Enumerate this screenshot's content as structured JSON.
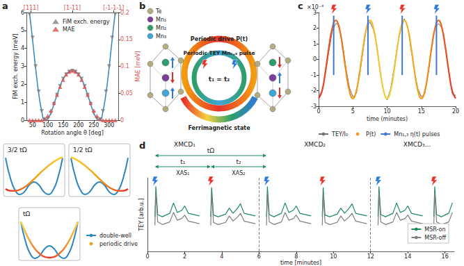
{
  "panel_labels": [
    "a",
    "b",
    "c",
    "d"
  ],
  "diagram": {
    "atoms": [
      {
        "label": "Te",
        "color": "#b3ac82"
      },
      {
        "label": "Mn₁",
        "color": "#7b3f98"
      },
      {
        "label": "Mn₂",
        "color": "#2e9e6b"
      },
      {
        "label": "Mn₃",
        "color": "#3fa7d6"
      }
    ],
    "rings": [
      "Periodic drive P(t)",
      "Periodic TEY Mn₁,₃ pulse",
      "Ferrimagnetic state"
    ],
    "timing": "t₁ = t₂"
  },
  "chart_data": [
    {
      "panel": "a",
      "type": "line",
      "grid": false,
      "legend": "top",
      "xlabel": "Rotation angle θ [deg]",
      "ylabel": "FiM exch. energy [meV]",
      "y2label": "MAE [meV]",
      "x": [
        40,
        50,
        60,
        70,
        80,
        90,
        100,
        110,
        120,
        130,
        140,
        150,
        160,
        170,
        180,
        190,
        200,
        210,
        220,
        230,
        240,
        250,
        260,
        270,
        280,
        290,
        300,
        310,
        320
      ],
      "xlim": [
        30,
        330
      ],
      "xticks": [
        50,
        100,
        150,
        200,
        250,
        300
      ],
      "top_ticks": [
        {
          "value": 45,
          "label": "[111]"
        },
        {
          "value": 180,
          "label": "[1-11]"
        },
        {
          "value": 315,
          "label": "[-1-1-1]"
        }
      ],
      "ylim": [
        0,
        6
      ],
      "yticks": [
        0,
        1,
        2,
        3,
        4,
        5,
        6
      ],
      "y2lim": [
        0,
        0.2
      ],
      "y2ticks": [
        0,
        0.05,
        0.1,
        0.15,
        0.2
      ],
      "series": [
        {
          "name": "FiM exch. energy",
          "color": "#7f7f7f",
          "marker": "triangle-down",
          "line_style": "none",
          "values": [
            5.9,
            4.6,
            3.0,
            1.6,
            0.5,
            0.05,
            0.1,
            0.4,
            0.9,
            1.4,
            1.9,
            2.3,
            2.55,
            2.7,
            2.75,
            2.7,
            2.55,
            2.3,
            1.9,
            1.4,
            0.9,
            0.4,
            0.1,
            0.05,
            0.5,
            1.6,
            3.0,
            4.6,
            5.9
          ]
        },
        {
          "name": "MAE",
          "color": "#d9534f",
          "marker": "triangle",
          "line_style": "none",
          "axis": "y2",
          "values": [
            0,
            0,
            0,
            0,
            0,
            0.002,
            0.008,
            0.018,
            0.032,
            0.047,
            0.062,
            0.075,
            0.085,
            0.09,
            0.092,
            0.09,
            0.085,
            0.075,
            0.062,
            0.047,
            0.032,
            0.018,
            0.008,
            0.002,
            0,
            0,
            0,
            0,
            0
          ]
        },
        {
          "color": "#2e86c1",
          "marker": "none",
          "line_style": "solid",
          "values": [
            6.0,
            4.5,
            2.9,
            1.5,
            0.5,
            0.0,
            0.1,
            0.4,
            0.9,
            1.4,
            1.9,
            2.3,
            2.55,
            2.7,
            2.75,
            2.7,
            2.55,
            2.3,
            1.9,
            1.4,
            0.9,
            0.4,
            0.1,
            0.0,
            0.5,
            1.5,
            2.9,
            4.5,
            6.0
          ]
        }
      ]
    },
    {
      "type": "line",
      "title": "3/2 tΩ",
      "tick_labels": false,
      "grid": false,
      "x": [
        -1.2,
        -1.0,
        -0.8,
        -0.6,
        -0.4,
        -0.2,
        0,
        0.2,
        0.4,
        0.6,
        0.8,
        1.0,
        1.2
      ],
      "xlim": [
        -1.2,
        1.2
      ],
      "ylim": [
        0,
        1.1
      ],
      "series": [
        {
          "name": "double-well",
          "color": "#2e86c1",
          "line_style": "solid",
          "values": [
            1.0,
            0.45,
            0.12,
            0.0,
            0.08,
            0.26,
            0.34,
            0.26,
            0.08,
            0.0,
            0.12,
            0.45,
            1.0
          ]
        },
        {
          "name": "periodic drive",
          "color": "#f39c12",
          "line_style": "gradient",
          "values": [
            0.15,
            0.1,
            0.1,
            0.13,
            0.2,
            0.3,
            0.42,
            0.55,
            0.67,
            0.78,
            0.88,
            0.96,
            1.02
          ]
        }
      ]
    },
    {
      "type": "line",
      "title": "1/2 tΩ",
      "tick_labels": false,
      "grid": false,
      "x": [
        -1.2,
        -1.0,
        -0.8,
        -0.6,
        -0.4,
        -0.2,
        0,
        0.2,
        0.4,
        0.6,
        0.8,
        1.0,
        1.2
      ],
      "xlim": [
        -1.2,
        1.2
      ],
      "ylim": [
        0,
        1.1
      ],
      "series": [
        {
          "name": "double-well",
          "color": "#2e86c1",
          "line_style": "solid",
          "values": [
            1.0,
            0.45,
            0.12,
            0.0,
            0.08,
            0.26,
            0.34,
            0.26,
            0.08,
            0.0,
            0.12,
            0.45,
            1.0
          ]
        },
        {
          "name": "periodic drive",
          "color": "#f39c12",
          "line_style": "gradient",
          "values": [
            1.02,
            0.96,
            0.88,
            0.78,
            0.67,
            0.55,
            0.42,
            0.3,
            0.2,
            0.13,
            0.1,
            0.1,
            0.15
          ]
        }
      ]
    },
    {
      "type": "line",
      "title": "tΩ",
      "tick_labels": false,
      "grid": false,
      "legend": "right",
      "x": [
        -1.2,
        -1.0,
        -0.8,
        -0.6,
        -0.4,
        -0.2,
        0,
        0.2,
        0.4,
        0.6,
        0.8,
        1.0,
        1.2
      ],
      "xlim": [
        -1.2,
        1.2
      ],
      "ylim": [
        0,
        1.1
      ],
      "series": [
        {
          "name": "double-well",
          "color": "#2e86c1",
          "line_style": "solid",
          "values": [
            1.0,
            0.45,
            0.12,
            0.0,
            0.08,
            0.26,
            0.34,
            0.26,
            0.08,
            0.0,
            0.12,
            0.45,
            1.0
          ]
        },
        {
          "name": "periodic drive",
          "color": "#f39c12",
          "line_style": "gradient",
          "values": [
            1.0,
            0.7,
            0.45,
            0.25,
            0.12,
            0.04,
            0.02,
            0.04,
            0.12,
            0.25,
            0.45,
            0.7,
            1.0
          ]
        }
      ]
    },
    {
      "panel": "c",
      "type": "line",
      "grid": false,
      "legend": "bottom",
      "xlabel": "time (minutes)",
      "y_multiplier": "×10⁻³",
      "x": [
        0,
        0.5,
        1,
        1.5,
        2,
        2.5,
        3,
        3.5,
        4,
        4.5,
        5,
        5.5,
        6,
        6.5,
        7,
        7.5,
        8,
        8.5,
        9,
        9.5,
        10,
        10.5,
        11,
        11.5,
        12,
        12.5,
        13,
        13.5,
        14,
        14.5,
        15,
        15.5,
        16,
        16.5,
        17,
        17.5,
        18,
        18.5,
        19,
        19.5,
        20
      ],
      "xlim": [
        0,
        20
      ],
      "xticks": [
        0,
        5,
        10,
        15,
        20
      ],
      "ylim": [
        -3,
        3
      ],
      "yticks": [
        -3,
        -2,
        -1,
        0,
        1,
        2,
        3
      ],
      "series": [
        {
          "name": "TEY/I₀",
          "color": "#6e6e6e",
          "line_style": "solid",
          "values": [
            -2.3,
            -2.1,
            -0.9,
            0.5,
            1.8,
            2.3,
            2.2,
            1.0,
            -0.6,
            -1.8,
            -2.4,
            -2.2,
            -1.0,
            0.6,
            2.1,
            2.4,
            1.9,
            0.9,
            -0.9,
            -2.1,
            -2.6,
            -1.9,
            -0.6,
            0.9,
            1.9,
            2.6,
            2.1,
            0.6,
            -0.8,
            -1.9,
            -2.4,
            -2.2,
            -0.9,
            0.8,
            2.0,
            2.3,
            2.0,
            0.7,
            -0.7,
            -2.2,
            -2.3
          ]
        },
        {
          "name": "P(t)",
          "color": "#f39c12",
          "line_style": "gradient",
          "values": [
            -2.5,
            -2.02,
            -0.77,
            0.77,
            2.02,
            2.5,
            2.02,
            0.77,
            -0.77,
            -2.02,
            -2.5,
            -2.02,
            -0.77,
            0.77,
            2.02,
            2.5,
            2.02,
            0.77,
            -0.77,
            -2.02,
            -2.5,
            -2.02,
            -0.77,
            0.77,
            2.02,
            2.5,
            2.02,
            0.77,
            -0.77,
            -2.02,
            -2.5,
            -2.02,
            -0.77,
            0.77,
            2.02,
            2.5,
            2.02,
            0.77,
            -0.77,
            -2.02,
            -2.5
          ]
        }
      ],
      "pulses": {
        "name": "Mn₁,₃ η(t) pulses",
        "color": "#3c78d8",
        "x": [
          2.2,
          7.2,
          12.2,
          17.2
        ],
        "low": [
          -1,
          -1,
          -1,
          -1
        ],
        "high": [
          2.8,
          2.8,
          2.8,
          2.8
        ]
      }
    },
    {
      "panel": "d",
      "type": "line",
      "grid": false,
      "legend": "right",
      "tick_labels": "x",
      "xlabel": "time [minutes]",
      "ylabel": "TEY [arb.u.]",
      "xlim": [
        0,
        16.5
      ],
      "xticks": [
        0,
        2,
        4,
        6,
        8,
        10,
        12,
        14,
        16
      ],
      "ylim": [
        -0.5,
        1.2
      ],
      "x": [
        0.4,
        0.45,
        0.55,
        0.8,
        1.2,
        1.4,
        1.6,
        1.85,
        2.0,
        2.2,
        2.8,
        3.0,
        3.4,
        3.45,
        3.55,
        3.8,
        4.2,
        4.4,
        4.6,
        4.85,
        5.0,
        5.2,
        5.8,
        6.0,
        6.4,
        6.45,
        6.55,
        6.8,
        7.2,
        7.4,
        7.6,
        7.85,
        8.0,
        8.2,
        8.8,
        9.0,
        9.4,
        9.45,
        9.55,
        9.8,
        10.2,
        10.4,
        10.6,
        10.85,
        11.0,
        11.2,
        11.8,
        12.0,
        12.4,
        12.45,
        12.55,
        12.8,
        13.2,
        13.4,
        13.6,
        13.85,
        14.0,
        14.2,
        14.8,
        15.0,
        15.4,
        15.45,
        15.55,
        15.8,
        16.2,
        16.4
      ],
      "series": [
        {
          "name": "MSR-on",
          "color": "#1f8a5b",
          "line_style": "solid",
          "values": [
            0.3,
            1.0,
            0.35,
            0.3,
            0.38,
            0.62,
            0.4,
            0.45,
            0.55,
            0.38,
            0.32,
            null,
            0.3,
            0.98,
            0.34,
            0.3,
            0.36,
            0.5,
            0.38,
            0.5,
            0.6,
            0.38,
            0.32,
            null,
            0.3,
            1.0,
            0.35,
            0.3,
            0.38,
            0.62,
            0.4,
            0.45,
            0.55,
            0.38,
            0.32,
            null,
            0.3,
            0.98,
            0.34,
            0.3,
            0.36,
            0.5,
            0.38,
            0.5,
            0.6,
            0.38,
            0.32,
            null,
            0.3,
            1.0,
            0.35,
            0.3,
            0.38,
            0.62,
            0.4,
            0.45,
            0.55,
            0.38,
            0.32,
            null,
            0.3,
            1.0,
            0.35,
            0.3,
            0.38,
            0.62
          ]
        },
        {
          "name": "MSR-off",
          "color": "#7f7f7f",
          "line_style": "solid",
          "values": [
            0.1,
            0.85,
            0.18,
            0.12,
            0.18,
            0.4,
            0.22,
            0.26,
            0.34,
            0.2,
            0.14,
            null,
            0.1,
            0.83,
            0.17,
            0.12,
            0.17,
            0.32,
            0.2,
            0.3,
            0.38,
            0.2,
            0.14,
            null,
            0.1,
            0.85,
            0.18,
            0.12,
            0.18,
            0.4,
            0.22,
            0.26,
            0.34,
            0.2,
            0.14,
            null,
            0.1,
            0.83,
            0.17,
            0.12,
            0.17,
            0.32,
            0.2,
            0.3,
            0.38,
            0.2,
            0.14,
            null,
            0.1,
            0.85,
            0.18,
            0.12,
            0.18,
            0.4,
            0.22,
            0.26,
            0.34,
            0.2,
            0.14,
            null,
            0.1,
            0.85,
            0.18,
            0.12,
            0.18,
            0.4
          ]
        }
      ],
      "dividers": [
        6,
        12
      ],
      "scan_starts": [
        0.4,
        3.4,
        6.4,
        9.4,
        12.4,
        15.4
      ],
      "sections": [
        {
          "label": "XMCD₁",
          "x": 2.0
        },
        {
          "label": "XMCD₂",
          "x": 9.0
        },
        {
          "label": "XMCD₃...",
          "x": 14.5
        }
      ],
      "intervals": [
        {
          "label": "tΩ",
          "from": 0.4,
          "to": 6.4
        },
        {
          "label": "t₁",
          "from": 0.4,
          "to": 3.4
        },
        {
          "label": "t₂",
          "from": 3.4,
          "to": 6.4
        }
      ],
      "scan_labels": [
        {
          "label": "XAS₁",
          "x": 1.9
        },
        {
          "label": "XAS₂",
          "x": 4.9
        }
      ]
    }
  ]
}
